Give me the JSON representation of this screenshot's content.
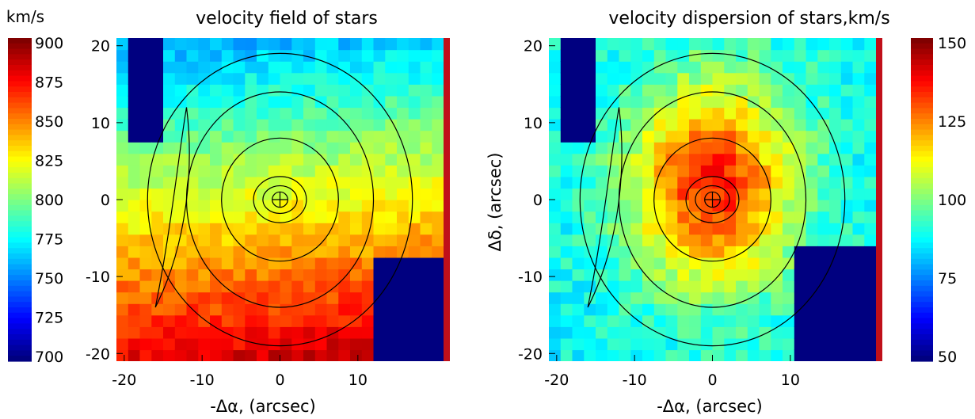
{
  "chart_data": [
    {
      "type": "heatmap",
      "title": "velocity field of stars",
      "xlabel": "",
      "ylabel": "",
      "colorbar_title": "km/s",
      "colorbar_range": [
        700,
        900
      ],
      "colorbar_ticks": [
        "900",
        "875",
        "850",
        "825",
        "800",
        "775",
        "750",
        "725",
        "700"
      ],
      "xlim": [
        -21,
        21
      ],
      "ylim": [
        -21,
        21
      ],
      "x_ticks": [
        "-20",
        "-10",
        "0",
        "10"
      ],
      "y_ticks": [
        "20",
        "10",
        "0",
        "-10",
        "-20"
      ],
      "x_tick_values": [
        -20,
        -10,
        0,
        10
      ],
      "y_tick_values": [
        20,
        10,
        0,
        -10,
        -20
      ],
      "field": {
        "min": 725,
        "max": 900,
        "gradient_direction": "north-to-south",
        "north_value": 760,
        "south_value": 885
      },
      "masked_regions": [
        {
          "x": [
            -20,
            -15
          ],
          "y": [
            8,
            21
          ],
          "value": 700
        },
        {
          "x": [
            12,
            21
          ],
          "y": [
            -21,
            -8
          ],
          "value": 700
        }
      ],
      "grid": false,
      "colormap": "rainbow"
    },
    {
      "type": "heatmap",
      "title": "velocity dispersion of stars,km/s",
      "xlabel": "-Δα, (arcsec)",
      "ylabel": "Δδ, (arcsec)",
      "colorbar_range": [
        50,
        150
      ],
      "colorbar_ticks": [
        "150",
        "125",
        "100",
        "75",
        "50"
      ],
      "xlim": [
        -21,
        21
      ],
      "ylim": [
        -21,
        21
      ],
      "x_ticks": [
        "-20",
        "-10",
        "0",
        "10"
      ],
      "y_ticks": [
        "20",
        "10",
        "0",
        "-10",
        "-20"
      ],
      "x_tick_values": [
        -20,
        -10,
        0,
        10
      ],
      "y_tick_values": [
        20,
        10,
        0,
        -10,
        -20
      ],
      "field": {
        "center": [
          0,
          2
        ],
        "center_value": 135,
        "outer_value": 88
      },
      "masked_regions": [
        {
          "x": [
            -20,
            -15
          ],
          "y": [
            8,
            21
          ],
          "value": 50
        },
        {
          "x": [
            10,
            21
          ],
          "y": [
            -21,
            -6
          ],
          "value": 50
        }
      ],
      "grid": false,
      "colormap": "rainbow"
    }
  ],
  "shared_xlabel": "-Δα, (arcsec)",
  "contour_center": [
    0,
    0
  ],
  "contour_color": "#000000",
  "mask_color": "#000080",
  "edge_color": "#c0101a"
}
